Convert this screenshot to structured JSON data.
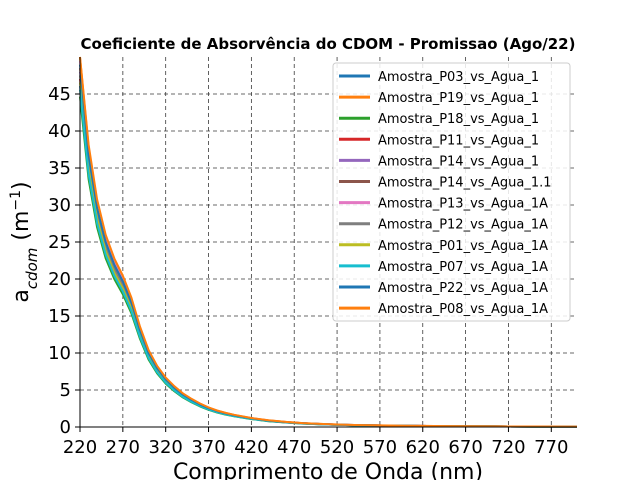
{
  "chart_data": {
    "type": "line",
    "title": "Coeficiente de Absorvência do CDOM - Promissao (Ago/22)",
    "xlabel": "Comprimento de Onda (nm)",
    "ylabel": "a_cdom (m^-1)",
    "ylabel_parts": {
      "base": "a",
      "sub": "cdom",
      "open": " (m",
      "sup": "−1",
      "close": ")"
    },
    "xlim": [
      220,
      800
    ],
    "ylim": [
      0,
      50
    ],
    "xticks": [
      220,
      270,
      320,
      370,
      420,
      470,
      520,
      570,
      620,
      670,
      720,
      770
    ],
    "yticks": [
      0,
      5,
      10,
      15,
      20,
      25,
      30,
      35,
      40,
      45
    ],
    "grid": true,
    "legend_position": "top-right",
    "x": [
      220,
      230,
      240,
      250,
      260,
      270,
      280,
      290,
      300,
      310,
      320,
      330,
      340,
      350,
      360,
      370,
      380,
      390,
      400,
      420,
      440,
      460,
      480,
      500,
      520,
      540,
      560,
      600,
      650,
      700,
      750,
      800
    ],
    "base_curve": [
      48,
      36,
      29,
      24.5,
      21.5,
      19.3,
      16.5,
      12.8,
      9.8,
      7.8,
      6.3,
      5.2,
      4.3,
      3.6,
      3.0,
      2.5,
      2.1,
      1.8,
      1.55,
      1.15,
      0.85,
      0.65,
      0.5,
      0.4,
      0.32,
      0.26,
      0.22,
      0.16,
      0.11,
      0.08,
      0.06,
      0.05
    ],
    "series": [
      {
        "name": "Amostra_P03_vs_Agua_1",
        "color": "#1f77b4",
        "scale": 0.96
      },
      {
        "name": "Amostra_P19_vs_Agua_1",
        "color": "#ff7f0e",
        "scale": 1.05
      },
      {
        "name": "Amostra_P18_vs_Agua_1",
        "color": "#2ca02c",
        "scale": 0.93
      },
      {
        "name": "Amostra_P11_vs_Agua_1",
        "color": "#d62728",
        "scale": 0.98
      },
      {
        "name": "Amostra_P14_vs_Agua_1",
        "color": "#9467bd",
        "scale": 1.0
      },
      {
        "name": "Amostra_P14_vs_Agua_1.1",
        "color": "#8c564b",
        "scale": 1.01
      },
      {
        "name": "Amostra_P13_vs_Agua_1A",
        "color": "#e377c2",
        "scale": 1.03
      },
      {
        "name": "Amostra_P12_vs_Agua_1A",
        "color": "#7f7f7f",
        "scale": 0.99
      },
      {
        "name": "Amostra_P01_vs_Agua_1A",
        "color": "#bcbd22",
        "scale": 0.97
      },
      {
        "name": "Amostra_P07_vs_Agua_1A",
        "color": "#17becf",
        "scale": 0.95
      },
      {
        "name": "Amostra_P22_vs_Agua_1A",
        "color": "#1f77b4",
        "scale": 1.02
      },
      {
        "name": "Amostra_P08_vs_Agua_1A",
        "color": "#ff7f0e",
        "scale": 1.06
      }
    ]
  }
}
